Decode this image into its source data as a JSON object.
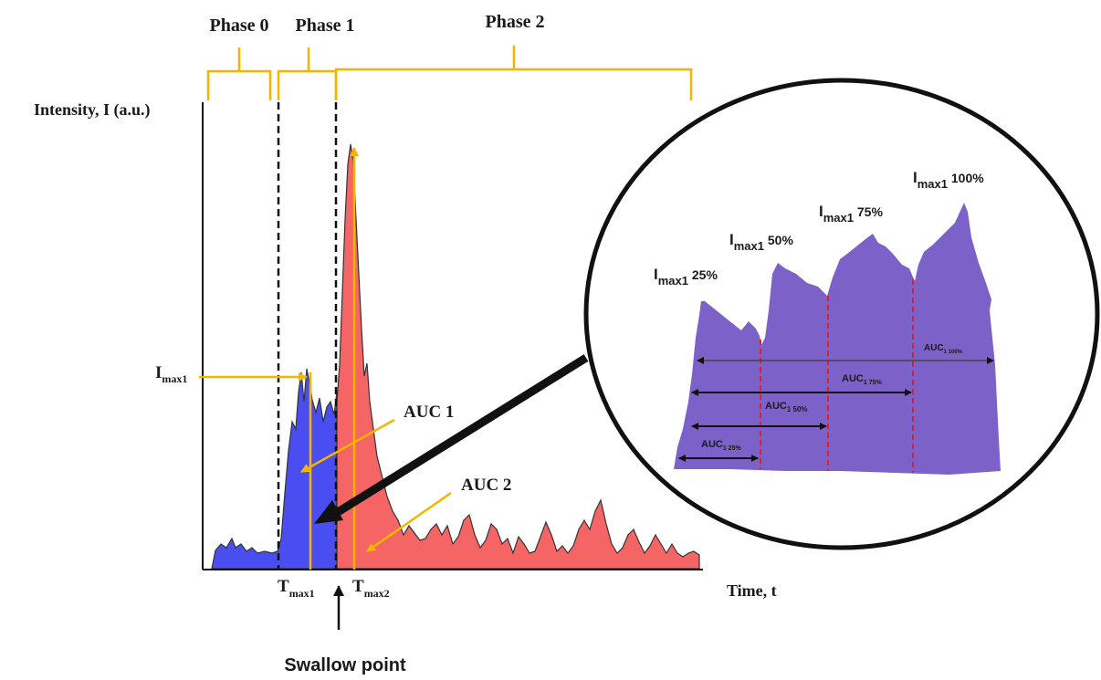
{
  "phases": [
    {
      "label": "Phase 0"
    },
    {
      "label": "Phase 1"
    },
    {
      "label": "Phase 2"
    }
  ],
  "axes": {
    "y_label": "Intensity, I (a.u.)",
    "x_label": "Time, t"
  },
  "markers": {
    "imax1": {
      "main": "I",
      "sub": "max1"
    },
    "tmax1": {
      "main": "T",
      "sub": "max1"
    },
    "tmax2": {
      "main": "T",
      "sub": "max2"
    }
  },
  "regions": {
    "auc1_label": "AUC 1",
    "auc2_label": "AUC 2"
  },
  "swallow_point": "Swallow point",
  "colors": {
    "phase1_fill": "#4a4ef0",
    "phase2_fill": "#f56565",
    "bracket": "#f5b400",
    "zoom_fill": "#7b61c8",
    "divider": "#e02020"
  },
  "zoom": {
    "peaks": [
      {
        "main": "I",
        "sub": "max1",
        "suffix": " 25%"
      },
      {
        "main": "I",
        "sub": "max1",
        "suffix": " 50%"
      },
      {
        "main": "I",
        "sub": "max1",
        "suffix": " 75%"
      },
      {
        "main": "I",
        "sub": "max1",
        "suffix": " 100%"
      }
    ],
    "auc": [
      {
        "main": "AUC",
        "sub": "1 25%"
      },
      {
        "main": "AUC",
        "sub": "1 50%"
      },
      {
        "main": "AUC",
        "sub": "1 75%"
      },
      {
        "main": "AUC",
        "sub": "1 100%"
      }
    ]
  }
}
